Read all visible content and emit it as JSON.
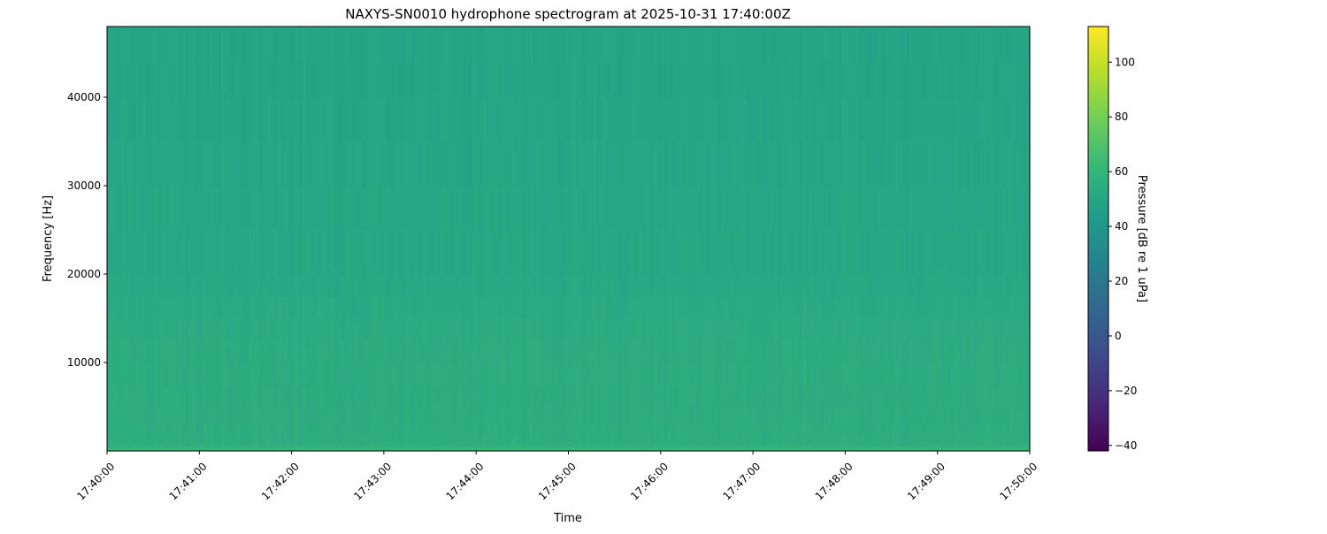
{
  "chart_data": {
    "type": "heatmap",
    "title": "NAXYS-SN0010 hydrophone spectrogram at 2025-10-31 17:40:00Z",
    "xlabel": "Time",
    "ylabel": "Frequency [Hz]",
    "x_tick_labels": [
      "17:40:00",
      "17:41:00",
      "17:42:00",
      "17:43:00",
      "17:44:00",
      "17:45:00",
      "17:46:00",
      "17:47:00",
      "17:48:00",
      "17:49:00",
      "17:50:00"
    ],
    "xlim": [
      "17:40:00",
      "17:50:00"
    ],
    "y_ticks": [
      10000,
      20000,
      30000,
      40000
    ],
    "y_tick_labels": [
      "10000",
      "20000",
      "30000",
      "40000"
    ],
    "ylim": [
      0,
      48000
    ],
    "colormap": "viridis",
    "colorbar": {
      "label": "Pressure [dB re 1 uPa]",
      "ticks": [
        -40,
        -20,
        0,
        20,
        40,
        60,
        80,
        100
      ],
      "tick_labels": [
        "−40",
        "−20",
        "0",
        "20",
        "40",
        "60",
        "80",
        "100"
      ],
      "range": [
        -42,
        113
      ]
    },
    "frequency_profile": {
      "frequencies_hz": [
        0,
        500,
        1000,
        5000,
        10000,
        15000,
        20000,
        30000,
        40000,
        48000
      ],
      "level_db": [
        66,
        58,
        55,
        54,
        54,
        53,
        51,
        50,
        49,
        49
      ]
    },
    "grid": false
  }
}
